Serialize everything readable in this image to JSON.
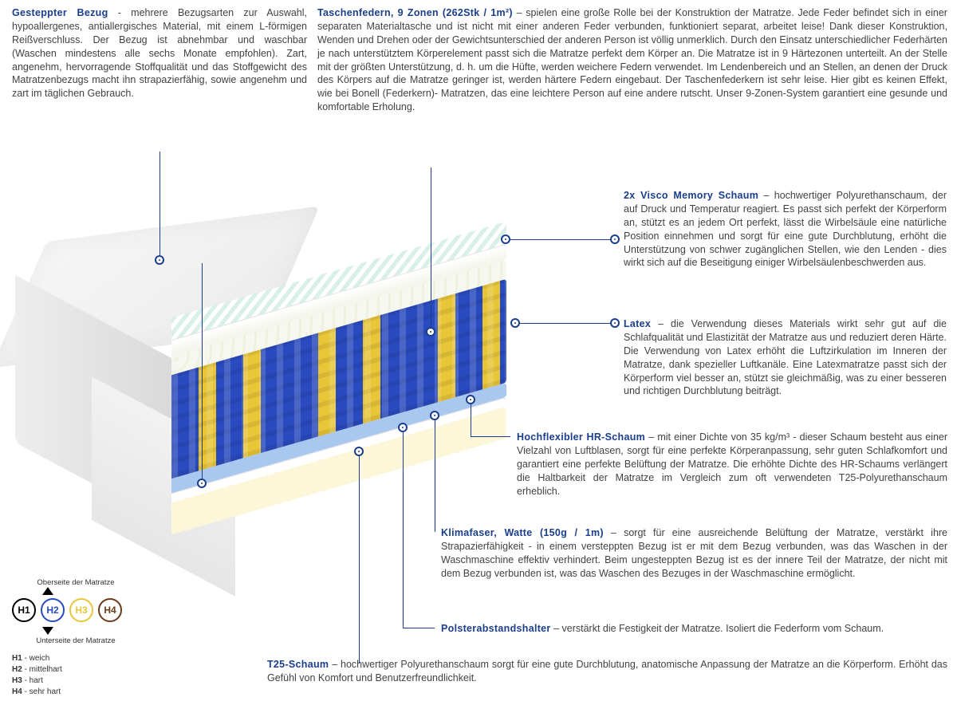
{
  "colors": {
    "accent": "#1a3e8c",
    "text": "#424242",
    "spring_blue": "#2a4bc0",
    "spring_yellow": "#e8c637",
    "hr_foam": "#a9c7ef",
    "t25_foam": "#fbf7d8",
    "h1_border": "#000000",
    "h2_border": "#2a4bc0",
    "h3_border": "#e8c637",
    "h4_border": "#6b3b1a"
  },
  "blocks": {
    "bezug": {
      "title": "Gesteppter Bezug",
      "sep": " - ",
      "body": "mehrere Bezugsarten zur Auswahl, hypoallergenes, antiallergisches Material, mit einem L-förmigen Reißverschluss. Der Bezug ist abnehmbar und waschbar (Waschen mindestens alle sechs Monate empfohlen). Zart, angenehm, hervorragende Stoffqualität und das Stoffgewicht des Matratzenbezugs macht ihn strapazierfähig, sowie angenehm und zart im täglichen Gebrauch."
    },
    "federn": {
      "title": "Taschenfedern, 9 Zonen (262Stk / 1m²)",
      "sep": " – ",
      "body": "spielen eine große Rolle bei der Konstruktion der Matratze. Jede Feder befindet sich in einer separaten Materialtasche und ist nicht mit einer anderen Feder verbunden, funktioniert separat, arbeitet leise! Dank dieser Konstruktion, Wenden und Drehen oder der Gewichtsunterschied der anderen Person ist völlig unmerklich. Durch den Einsatz unterschiedlicher Federhärten je nach unterstütztem Körperelement passt sich die Matratze perfekt dem Körper an. Die Matratze ist in 9 Härtezonen unterteilt. An der Stelle mit der größten Unterstützung, d. h. um die Hüfte, werden weichere Federn verwendet. Im Lendenbereich und an Stellen, an denen der Druck des Körpers auf die Matratze geringer ist, werden härtere Federn eingebaut. Der Taschenfederkern ist sehr leise. Hier gibt es keinen Effekt, wie bei Bonell (Federkern)- Matratzen, das eine leichtere Person auf eine andere rutscht. Unser 9-Zonen-System garantiert eine gesunde und komfortable Erholung."
    },
    "visco": {
      "title": "2x Visco Memory Schaum",
      "sep": " – ",
      "body": "hochwertiger Polyurethanschaum, der auf Druck und Temperatur reagiert. Es passt sich perfekt der Körperform an, stützt es an jedem Ort perfekt, lässt die Wirbelsäule eine natürliche Position einnehmen und sorgt für eine gute Durchblutung, erhöht die Unterstützung von schwer zugänglichen Stellen, wie den Lenden - dies wirkt sich auf die Beseitigung einiger Wirbelsäulenbeschwerden aus."
    },
    "latex": {
      "title": "Latex",
      "sep": " – ",
      "body": "die Verwendung dieses Materials wirkt sehr gut auf die Schlafqualität und Elastizität der Matratze aus und reduziert deren Härte. Die Verwendung von Latex erhöht die Luftzirkulation im Inneren der Matratze, dank spezieller Luftkanäle. Eine Latexmatratze passt sich der Körperform viel besser an, stützt sie gleichmäßig, was zu einer besseren und richtigen Durchblutung beiträgt."
    },
    "hr": {
      "title": "Hochflexibler HR-Schaum",
      "sep": " – ",
      "body": "mit einer Dichte von 35 kg/m³ - dieser Schaum besteht aus einer Vielzahl von Luftblasen, sorgt für eine perfekte Körperanpassung, sehr guten Schlafkomfort und garantiert eine perfekte Belüftung der Matratze. Die erhöhte Dichte des HR-Schaums verlängert die Haltbarkeit der Matratze im Vergleich zum oft verwendeten T25-Polyurethanschaum erheblich."
    },
    "klima": {
      "title": "Klimafaser, Watte (150g / 1m)",
      "sep": " – ",
      "body": "sorgt für eine ausreichende Belüftung der Matratze, verstärkt ihre Strapazierfähigkeit - in einem versteppten Bezug ist er mit dem Bezug verbunden, was das Waschen in der Waschmaschine effektiv verhindert. Beim ungesteppten Bezug ist es der innere Teil der Matratze, der nicht mit dem Bezug verbunden ist, was das Waschen des Bezuges in der Waschmaschine ermöglicht."
    },
    "polster": {
      "title": "Polsterabstandshalter",
      "sep": " – ",
      "body": "verstärkt die Festigkeit der Matratze. Isoliert die Federform vom Schaum."
    },
    "t25": {
      "title": "T25-Schaum",
      "sep": " – ",
      "body": "hochwertiger Polyurethanschaum sorgt für eine gute Durchblutung, anatomische Anpassung der Matratze an die Körperform. Erhöht das Gefühl von Komfort und Benutzerfreundlichkeit."
    }
  },
  "legend": {
    "top_label": "Oberseite der Matratze",
    "bottom_label": "Unterseite der Matratze",
    "items": [
      {
        "code": "H1",
        "label": "weich",
        "border": "#000000"
      },
      {
        "code": "H2",
        "label": "mittelhart",
        "border": "#2a4bc0"
      },
      {
        "code": "H3",
        "label": "hart",
        "border": "#e8c637"
      },
      {
        "code": "H4",
        "label": "sehr hart",
        "border": "#6b3b1a"
      }
    ]
  },
  "diagram": {
    "type": "infographic",
    "layers_top_to_bottom": [
      "bezug",
      "visco",
      "latex",
      "taschenfedern",
      "hr",
      "klima",
      "polster",
      "t25"
    ],
    "spring_zones": 9,
    "spring_count_per_m2": 262,
    "hr_density_kg_m3": 35,
    "klima_weight_g_per_m": 150
  }
}
